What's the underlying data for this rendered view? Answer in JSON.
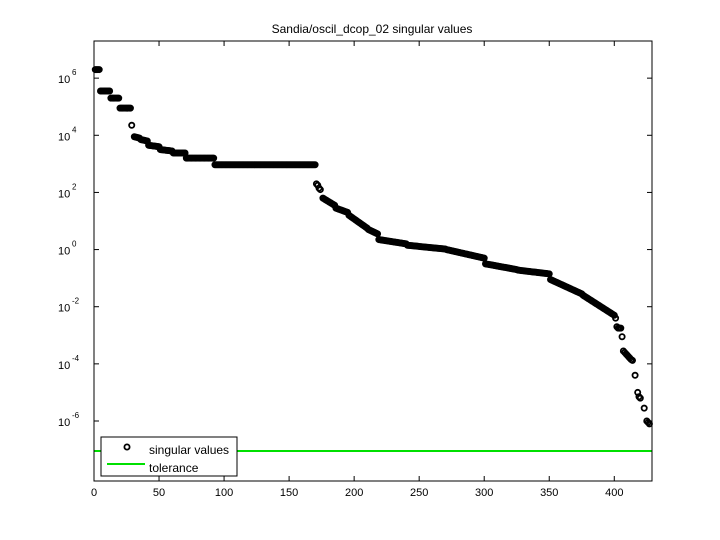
{
  "chart_data": {
    "type": "scatter",
    "title": "Sandia/oscil_dcop_02 singular values",
    "xlabel": "",
    "ylabel": "",
    "yscale": "log",
    "xlim": [
      0,
      429
    ],
    "ylim_log10": [
      -8.1,
      7.3
    ],
    "x_ticks": [
      0,
      50,
      100,
      150,
      200,
      250,
      300,
      350,
      400
    ],
    "y_ticks_log10": [
      -6,
      -4,
      -2,
      0,
      2,
      4,
      6
    ],
    "grid": false,
    "legend": {
      "position": "lower left",
      "entries": [
        "singular values",
        "tolerance"
      ]
    },
    "colors": {
      "markers": "#000000",
      "tolerance": "#00e000"
    },
    "series": [
      {
        "name": "singular values",
        "marker": "open-circle",
        "segments_log10": [
          {
            "x0": 1,
            "x1": 4,
            "y0": 6.3,
            "y1": 6.3
          },
          {
            "x0": 5,
            "x1": 12,
            "y0": 5.55,
            "y1": 5.55
          },
          {
            "x0": 13,
            "x1": 19,
            "y0": 5.3,
            "y1": 5.3
          },
          {
            "x0": 20,
            "x1": 28,
            "y0": 4.95,
            "y1": 4.95
          },
          {
            "x0": 29,
            "x1": 29,
            "y0": 4.35,
            "y1": 4.35
          },
          {
            "x0": 31,
            "x1": 35,
            "y0": 3.95,
            "y1": 3.9
          },
          {
            "x0": 36,
            "x1": 41,
            "y0": 3.85,
            "y1": 3.8
          },
          {
            "x0": 42,
            "x1": 50,
            "y0": 3.65,
            "y1": 3.6
          },
          {
            "x0": 51,
            "x1": 60,
            "y0": 3.5,
            "y1": 3.45
          },
          {
            "x0": 61,
            "x1": 70,
            "y0": 3.38,
            "y1": 3.38
          },
          {
            "x0": 71,
            "x1": 92,
            "y0": 3.2,
            "y1": 3.2
          },
          {
            "x0": 93,
            "x1": 170,
            "y0": 2.97,
            "y1": 2.97
          },
          {
            "x0": 171,
            "x1": 172,
            "y0": 2.3,
            "y1": 2.25
          },
          {
            "x0": 173,
            "x1": 174,
            "y0": 2.15,
            "y1": 2.1
          },
          {
            "x0": 176,
            "x1": 185,
            "y0": 1.8,
            "y1": 1.55
          },
          {
            "x0": 186,
            "x1": 195,
            "y0": 1.45,
            "y1": 1.3
          },
          {
            "x0": 196,
            "x1": 210,
            "y0": 1.2,
            "y1": 0.75
          },
          {
            "x0": 211,
            "x1": 218,
            "y0": 0.7,
            "y1": 0.55
          },
          {
            "x0": 219,
            "x1": 240,
            "y0": 0.35,
            "y1": 0.2
          },
          {
            "x0": 241,
            "x1": 270,
            "y0": 0.15,
            "y1": 0.02
          },
          {
            "x0": 271,
            "x1": 300,
            "y0": 0.0,
            "y1": -0.3
          },
          {
            "x0": 301,
            "x1": 325,
            "y0": -0.5,
            "y1": -0.7
          },
          {
            "x0": 326,
            "x1": 350,
            "y0": -0.72,
            "y1": -0.85
          },
          {
            "x0": 351,
            "x1": 375,
            "y0": -1.05,
            "y1": -1.55
          },
          {
            "x0": 376,
            "x1": 400,
            "y0": -1.6,
            "y1": -2.3
          },
          {
            "x0": 401,
            "x1": 401,
            "y0": -2.4,
            "y1": -2.4
          }
        ],
        "points_log10": [
          [
            402,
            -2.7
          ],
          [
            403,
            -2.75
          ],
          [
            404,
            -2.75
          ],
          [
            405,
            -2.75
          ],
          [
            406,
            -3.05
          ],
          [
            407,
            -3.55
          ],
          [
            408,
            -3.6
          ],
          [
            409,
            -3.65
          ],
          [
            410,
            -3.7
          ],
          [
            411,
            -3.75
          ],
          [
            412,
            -3.8
          ],
          [
            413,
            -3.85
          ],
          [
            414,
            -3.88
          ],
          [
            416,
            -4.4
          ],
          [
            418,
            -5.0
          ],
          [
            419,
            -5.15
          ],
          [
            420,
            -5.2
          ],
          [
            423,
            -5.55
          ],
          [
            425,
            -6.0
          ],
          [
            426,
            -6.05
          ],
          [
            427,
            -6.1
          ]
        ]
      },
      {
        "name": "tolerance",
        "type": "line",
        "y_log10": -7.05
      }
    ]
  }
}
